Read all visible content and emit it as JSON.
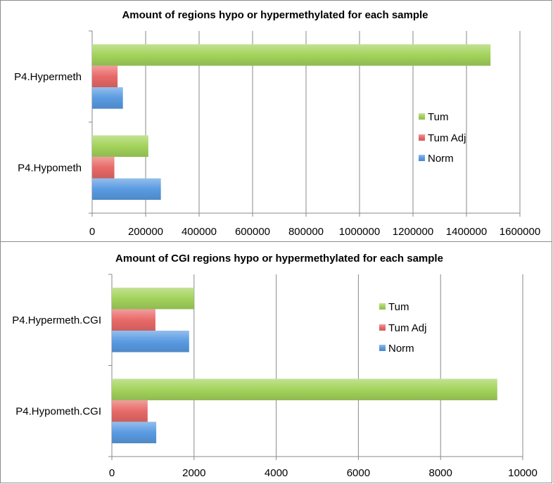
{
  "colors": {
    "Tum": "#a3d35b",
    "Tum Adj": "#e86a68",
    "Norm": "#5a9be2"
  },
  "chart_data": [
    {
      "type": "bar",
      "orientation": "horizontal",
      "title": "Amount of regions hypo or hypermethylated for each sample",
      "categories": [
        "P4.Hypermeth",
        "P4.Hypometh"
      ],
      "series": [
        {
          "name": "Tum",
          "values": [
            1490000,
            210000
          ]
        },
        {
          "name": "Tum Adj",
          "values": [
            95000,
            83000
          ]
        },
        {
          "name": "Norm",
          "values": [
            115000,
            257000
          ]
        }
      ],
      "xlim": [
        0,
        1600000
      ],
      "x_ticks": [
        0,
        200000,
        400000,
        600000,
        800000,
        1000000,
        1200000,
        1400000,
        1600000
      ],
      "grid": "vertical",
      "legend": "right"
    },
    {
      "type": "bar",
      "orientation": "horizontal",
      "title": "Amount of CGI regions hypo or hypermethylated for each sample",
      "categories": [
        "P4.Hypermeth.CGI",
        "P4.Hypometh.CGI"
      ],
      "series": [
        {
          "name": "Tum",
          "values": [
            2000,
            9380
          ]
        },
        {
          "name": "Tum Adj",
          "values": [
            1060,
            870
          ]
        },
        {
          "name": "Norm",
          "values": [
            1880,
            1080
          ]
        }
      ],
      "xlim": [
        0,
        10000
      ],
      "x_ticks": [
        0,
        2000,
        4000,
        6000,
        8000,
        10000
      ],
      "grid": "vertical",
      "legend": "right"
    }
  ]
}
